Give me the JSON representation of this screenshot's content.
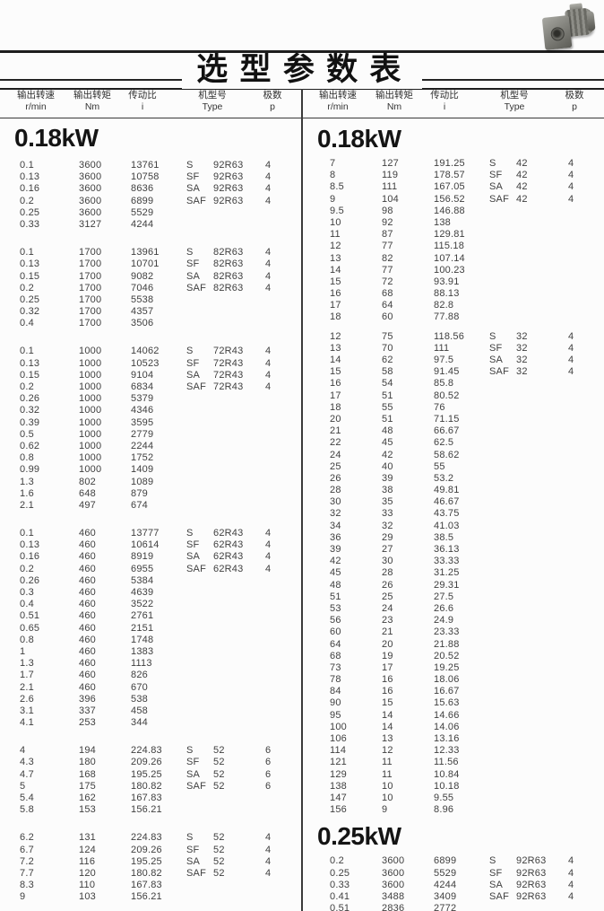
{
  "title": "选型参数表",
  "images": {
    "top_right": "gear-motor-photo"
  },
  "colors": {
    "background": "#fcfcfc",
    "text": "#3f3f3f",
    "heading": "#141414",
    "rule": "#1e1e1e"
  },
  "headers": [
    {
      "cn": "输出转速",
      "unit": "r/min"
    },
    {
      "cn": "输出转矩",
      "unit": "Nm"
    },
    {
      "cn": "传动比",
      "unit": "i"
    },
    {
      "cn": "机型号",
      "unit": "Type"
    },
    {
      "cn": "极数",
      "unit": "p"
    }
  ],
  "left_column": {
    "sections": [
      {
        "heading": "0.18kW",
        "blocks": [
          [
            [
              "0.1",
              "3600",
              "13761",
              "S",
              "92R63",
              "4"
            ],
            [
              "0.13",
              "3600",
              "10758",
              "SF",
              "92R63",
              "4"
            ],
            [
              "0.16",
              "3600",
              "8636",
              "SA",
              "92R63",
              "4"
            ],
            [
              "0.2",
              "3600",
              "6899",
              "SAF",
              "92R63",
              "4"
            ],
            [
              "0.25",
              "3600",
              "5529",
              "",
              "",
              ""
            ],
            [
              "0.33",
              "3127",
              "4244",
              "",
              "",
              ""
            ]
          ],
          [
            [
              "0.1",
              "1700",
              "13961",
              "S",
              "82R63",
              "4"
            ],
            [
              "0.13",
              "1700",
              "10701",
              "SF",
              "82R63",
              "4"
            ],
            [
              "0.15",
              "1700",
              "9082",
              "SA",
              "82R63",
              "4"
            ],
            [
              "0.2",
              "1700",
              "7046",
              "SAF",
              "82R63",
              "4"
            ],
            [
              "0.25",
              "1700",
              "5538",
              "",
              "",
              ""
            ],
            [
              "0.32",
              "1700",
              "4357",
              "",
              "",
              ""
            ],
            [
              "0.4",
              "1700",
              "3506",
              "",
              "",
              ""
            ]
          ],
          [
            [
              "0.1",
              "1000",
              "14062",
              "S",
              "72R43",
              "4"
            ],
            [
              "0.13",
              "1000",
              "10523",
              "SF",
              "72R43",
              "4"
            ],
            [
              "0.15",
              "1000",
              "9104",
              "SA",
              "72R43",
              "4"
            ],
            [
              "0.2",
              "1000",
              "6834",
              "SAF",
              "72R43",
              "4"
            ],
            [
              "0.26",
              "1000",
              "5379",
              "",
              "",
              ""
            ],
            [
              "0.32",
              "1000",
              "4346",
              "",
              "",
              ""
            ],
            [
              "0.39",
              "1000",
              "3595",
              "",
              "",
              ""
            ],
            [
              "0.5",
              "1000",
              "2779",
              "",
              "",
              ""
            ],
            [
              "0.62",
              "1000",
              "2244",
              "",
              "",
              ""
            ],
            [
              "0.8",
              "1000",
              "1752",
              "",
              "",
              ""
            ],
            [
              "0.99",
              "1000",
              "1409",
              "",
              "",
              ""
            ],
            [
              "1.3",
              "802",
              "1089",
              "",
              "",
              ""
            ],
            [
              "1.6",
              "648",
              "879",
              "",
              "",
              ""
            ],
            [
              "2.1",
              "497",
              "674",
              "",
              "",
              ""
            ]
          ],
          [
            [
              "0.1",
              "460",
              "13777",
              "S",
              "62R43",
              "4"
            ],
            [
              "0.13",
              "460",
              "10614",
              "SF",
              "62R43",
              "4"
            ],
            [
              "0.16",
              "460",
              "8919",
              "SA",
              "62R43",
              "4"
            ],
            [
              "0.2",
              "460",
              "6955",
              "SAF",
              "62R43",
              "4"
            ],
            [
              "0.26",
              "460",
              "5384",
              "",
              "",
              ""
            ],
            [
              "0.3",
              "460",
              "4639",
              "",
              "",
              ""
            ],
            [
              "0.4",
              "460",
              "3522",
              "",
              "",
              ""
            ],
            [
              "0.51",
              "460",
              "2761",
              "",
              "",
              ""
            ],
            [
              "0.65",
              "460",
              "2151",
              "",
              "",
              ""
            ],
            [
              "0.8",
              "460",
              "1748",
              "",
              "",
              ""
            ],
            [
              "1",
              "460",
              "1383",
              "",
              "",
              ""
            ],
            [
              "1.3",
              "460",
              "1113",
              "",
              "",
              ""
            ],
            [
              "1.7",
              "460",
              "826",
              "",
              "",
              ""
            ],
            [
              "2.1",
              "460",
              "670",
              "",
              "",
              ""
            ],
            [
              "2.6",
              "396",
              "538",
              "",
              "",
              ""
            ],
            [
              "3.1",
              "337",
              "458",
              "",
              "",
              ""
            ],
            [
              "4.1",
              "253",
              "344",
              "",
              "",
              ""
            ]
          ],
          [
            [
              "4",
              "194",
              "224.83",
              "S",
              "52",
              "6"
            ],
            [
              "4.3",
              "180",
              "209.26",
              "SF",
              "52",
              "6"
            ],
            [
              "4.7",
              "168",
              "195.25",
              "SA",
              "52",
              "6"
            ],
            [
              "5",
              "175",
              "180.82",
              "SAF",
              "52",
              "6"
            ],
            [
              "5.4",
              "162",
              "167.83",
              "",
              "",
              ""
            ],
            [
              "5.8",
              "153",
              "156.21",
              "",
              "",
              ""
            ]
          ],
          [
            [
              "6.2",
              "131",
              "224.83",
              "S",
              "52",
              "4"
            ],
            [
              "6.7",
              "124",
              "209.26",
              "SF",
              "52",
              "4"
            ],
            [
              "7.2",
              "116",
              "195.25",
              "SA",
              "52",
              "4"
            ],
            [
              "7.7",
              "120",
              "180.82",
              "SAF",
              "52",
              "4"
            ],
            [
              "8.3",
              "110",
              "167.83",
              "",
              "",
              ""
            ],
            [
              "9",
              "103",
              "156.21",
              "",
              "",
              ""
            ]
          ]
        ]
      }
    ]
  },
  "right_column": {
    "sections": [
      {
        "heading": "0.18kW",
        "blocks": [
          [
            [
              "7",
              "127",
              "191.25",
              "S",
              "42",
              "4"
            ],
            [
              "8",
              "119",
              "178.57",
              "SF",
              "42",
              "4"
            ],
            [
              "8.5",
              "111",
              "167.05",
              "SA",
              "42",
              "4"
            ],
            [
              "9",
              "104",
              "156.52",
              "SAF",
              "42",
              "4"
            ],
            [
              "9.5",
              "98",
              "146.88",
              "",
              "",
              ""
            ],
            [
              "10",
              "92",
              "138",
              "",
              "",
              ""
            ],
            [
              "11",
              "87",
              "129.81",
              "",
              "",
              ""
            ],
            [
              "12",
              "77",
              "115.18",
              "",
              "",
              ""
            ],
            [
              "13",
              "82",
              "107.14",
              "",
              "",
              ""
            ],
            [
              "14",
              "77",
              "100.23",
              "",
              "",
              ""
            ],
            [
              "15",
              "72",
              "93.91",
              "",
              "",
              ""
            ],
            [
              "16",
              "68",
              "88.13",
              "",
              "",
              ""
            ],
            [
              "17",
              "64",
              "82.8",
              "",
              "",
              ""
            ],
            [
              "18",
              "60",
              "77.88",
              "",
              "",
              ""
            ]
          ],
          [
            [
              "12",
              "75",
              "118.56",
              "S",
              "32",
              "4"
            ],
            [
              "13",
              "70",
              "111",
              "SF",
              "32",
              "4"
            ],
            [
              "14",
              "62",
              "97.5",
              "SA",
              "32",
              "4"
            ],
            [
              "15",
              "58",
              "91.45",
              "SAF",
              "32",
              "4"
            ],
            [
              "16",
              "54",
              "85.8",
              "",
              "",
              ""
            ],
            [
              "17",
              "51",
              "80.52",
              "",
              "",
              ""
            ],
            [
              "18",
              "55",
              "76",
              "",
              "",
              ""
            ],
            [
              "20",
              "51",
              "71.15",
              "",
              "",
              ""
            ],
            [
              "21",
              "48",
              "66.67",
              "",
              "",
              ""
            ],
            [
              "22",
              "45",
              "62.5",
              "",
              "",
              ""
            ],
            [
              "24",
              "42",
              "58.62",
              "",
              "",
              ""
            ],
            [
              "25",
              "40",
              "55",
              "",
              "",
              ""
            ],
            [
              "26",
              "39",
              "53.2",
              "",
              "",
              ""
            ],
            [
              "28",
              "38",
              "49.81",
              "",
              "",
              ""
            ],
            [
              "30",
              "35",
              "46.67",
              "",
              "",
              ""
            ],
            [
              "32",
              "33",
              "43.75",
              "",
              "",
              ""
            ],
            [
              "34",
              "32",
              "41.03",
              "",
              "",
              ""
            ],
            [
              "36",
              "29",
              "38.5",
              "",
              "",
              ""
            ],
            [
              "39",
              "27",
              "36.13",
              "",
              "",
              ""
            ],
            [
              "42",
              "30",
              "33.33",
              "",
              "",
              ""
            ],
            [
              "45",
              "28",
              "31.25",
              "",
              "",
              ""
            ],
            [
              "48",
              "26",
              "29.31",
              "",
              "",
              ""
            ],
            [
              "51",
              "25",
              "27.5",
              "",
              "",
              ""
            ],
            [
              "53",
              "24",
              "26.6",
              "",
              "",
              ""
            ],
            [
              "56",
              "23",
              "24.9",
              "",
              "",
              ""
            ],
            [
              "60",
              "21",
              "23.33",
              "",
              "",
              ""
            ],
            [
              "64",
              "20",
              "21.88",
              "",
              "",
              ""
            ],
            [
              "68",
              "19",
              "20.52",
              "",
              "",
              ""
            ],
            [
              "73",
              "17",
              "19.25",
              "",
              "",
              ""
            ],
            [
              "78",
              "16",
              "18.06",
              "",
              "",
              ""
            ],
            [
              "84",
              "16",
              "16.67",
              "",
              "",
              ""
            ],
            [
              "90",
              "15",
              "15.63",
              "",
              "",
              ""
            ],
            [
              "95",
              "14",
              "14.66",
              "",
              "",
              ""
            ],
            [
              "100",
              "14",
              "14.06",
              "",
              "",
              ""
            ],
            [
              "106",
              "13",
              "13.16",
              "",
              "",
              ""
            ],
            [
              "114",
              "12",
              "12.33",
              "",
              "",
              ""
            ],
            [
              "121",
              "11",
              "11.56",
              "",
              "",
              ""
            ],
            [
              "129",
              "11",
              "10.84",
              "",
              "",
              ""
            ],
            [
              "138",
              "10",
              "10.18",
              "",
              "",
              ""
            ],
            [
              "147",
              "10",
              "9.55",
              "",
              "",
              ""
            ],
            [
              "156",
              "9",
              "8.96",
              "",
              "",
              ""
            ]
          ]
        ]
      },
      {
        "heading": "0.25kW",
        "blocks": [
          [
            [
              "0.2",
              "3600",
              "6899",
              "S",
              "92R63",
              "4"
            ],
            [
              "0.25",
              "3600",
              "5529",
              "SF",
              "92R63",
              "4"
            ],
            [
              "0.33",
              "3600",
              "4244",
              "SA",
              "92R63",
              "4"
            ],
            [
              "0.41",
              "3488",
              "3409",
              "SAF",
              "92R63",
              "4"
            ],
            [
              "0.51",
              "2836",
              "2772",
              "",
              "",
              ""
            ]
          ]
        ]
      }
    ]
  }
}
